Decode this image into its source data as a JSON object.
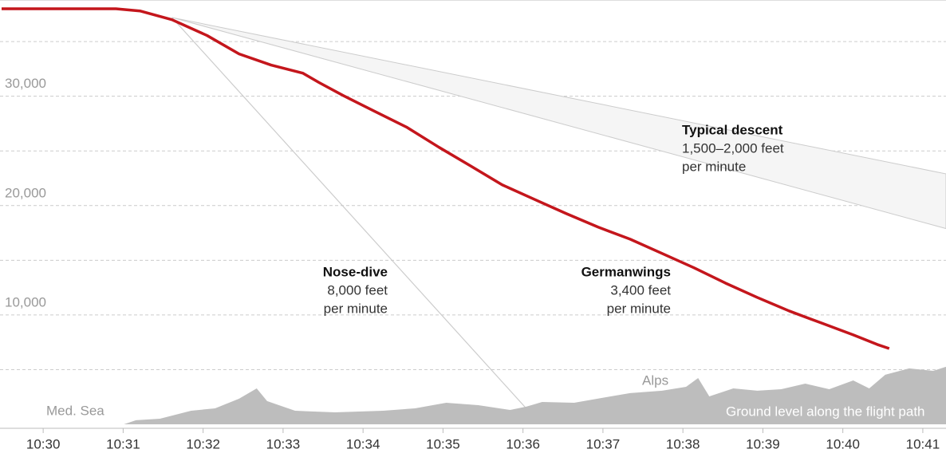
{
  "chart_data": {
    "type": "line",
    "xlim": [
      -0.54,
      11.29
    ],
    "ylim": [
      0,
      38800
    ],
    "xticks": [
      {
        "value": 0,
        "label": "10:30"
      },
      {
        "value": 1,
        "label": "10:31"
      },
      {
        "value": 2,
        "label": "10:32"
      },
      {
        "value": 3,
        "label": "10:33"
      },
      {
        "value": 4,
        "label": "10:34"
      },
      {
        "value": 5,
        "label": "10:35"
      },
      {
        "value": 6,
        "label": "10:36"
      },
      {
        "value": 7,
        "label": "10:37"
      },
      {
        "value": 8,
        "label": "10:38"
      },
      {
        "value": 9,
        "label": "10:39"
      },
      {
        "value": 10,
        "label": "10:40"
      },
      {
        "value": 11,
        "label": "10:41"
      }
    ],
    "yticks": [
      {
        "value": 5000,
        "label": null
      },
      {
        "value": 10000,
        "label": "10,000"
      },
      {
        "value": 15000,
        "label": null
      },
      {
        "value": 20000,
        "label": "20,000"
      },
      {
        "value": 25000,
        "label": null
      },
      {
        "value": 30000,
        "label": "30,000"
      },
      {
        "value": 35000,
        "label": null
      }
    ],
    "grid": true,
    "series": [
      {
        "name": "Typical descent",
        "kind": "band",
        "color": "#f5f5f5",
        "labels": [
          "1,500–2,000 feet",
          "per minute"
        ],
        "x": [
          1.61,
          11.29
        ],
        "values": [
          37200,
          22900
        ],
        "lower": [
          37200,
          17900
        ]
      },
      {
        "name": "Nose-dive",
        "kind": "line",
        "color": "#cccccc",
        "labels": [
          "8,000 feet",
          "per minute"
        ],
        "x": [
          1.61,
          6.04
        ],
        "values": [
          37200,
          1460
        ]
      },
      {
        "name": "Ground level along the flight path",
        "kind": "area",
        "color": "#bdbdbd",
        "x": [
          0.86,
          1.01,
          1.16,
          1.46,
          1.85,
          2.15,
          2.45,
          2.67,
          2.8,
          3.15,
          3.65,
          4.25,
          4.65,
          5.04,
          5.44,
          5.84,
          6.04,
          6.24,
          6.64,
          7.04,
          7.34,
          7.74,
          8.04,
          8.19,
          8.33,
          8.63,
          8.93,
          9.23,
          9.53,
          9.83,
          10.13,
          10.33,
          10.53,
          10.83,
          11.13,
          11.29
        ],
        "values": [
          0,
          0,
          370,
          510,
          1240,
          1460,
          2340,
          3280,
          2120,
          1240,
          1090,
          1240,
          1460,
          1970,
          1750,
          1310,
          1610,
          2040,
          1970,
          2480,
          2850,
          3070,
          3430,
          4230,
          2550,
          3280,
          3070,
          3210,
          3720,
          3210,
          4010,
          3280,
          4530,
          5110,
          4890,
          5260
        ]
      },
      {
        "name": "Germanwings",
        "kind": "line",
        "color": "#c4161c",
        "labels": [
          "3,400 feet",
          "per minute"
        ],
        "x": [
          -0.52,
          0.91,
          1.21,
          1.61,
          2.05,
          2.45,
          2.85,
          3.25,
          3.45,
          3.75,
          4.15,
          4.55,
          4.95,
          5.34,
          5.74,
          6.14,
          6.54,
          6.94,
          7.34,
          7.74,
          8.14,
          8.53,
          8.93,
          9.33,
          9.73,
          10.13,
          10.43,
          10.58
        ],
        "values": [
          38000,
          38000,
          37800,
          37000,
          35550,
          33870,
          32850,
          32100,
          31250,
          30070,
          28600,
          27150,
          25330,
          23650,
          21900,
          20580,
          19270,
          18030,
          16930,
          15620,
          14310,
          12920,
          11600,
          10360,
          9270,
          8180,
          7300,
          6930
        ]
      }
    ],
    "annotations": [
      "Med. Sea",
      "Alps"
    ]
  }
}
